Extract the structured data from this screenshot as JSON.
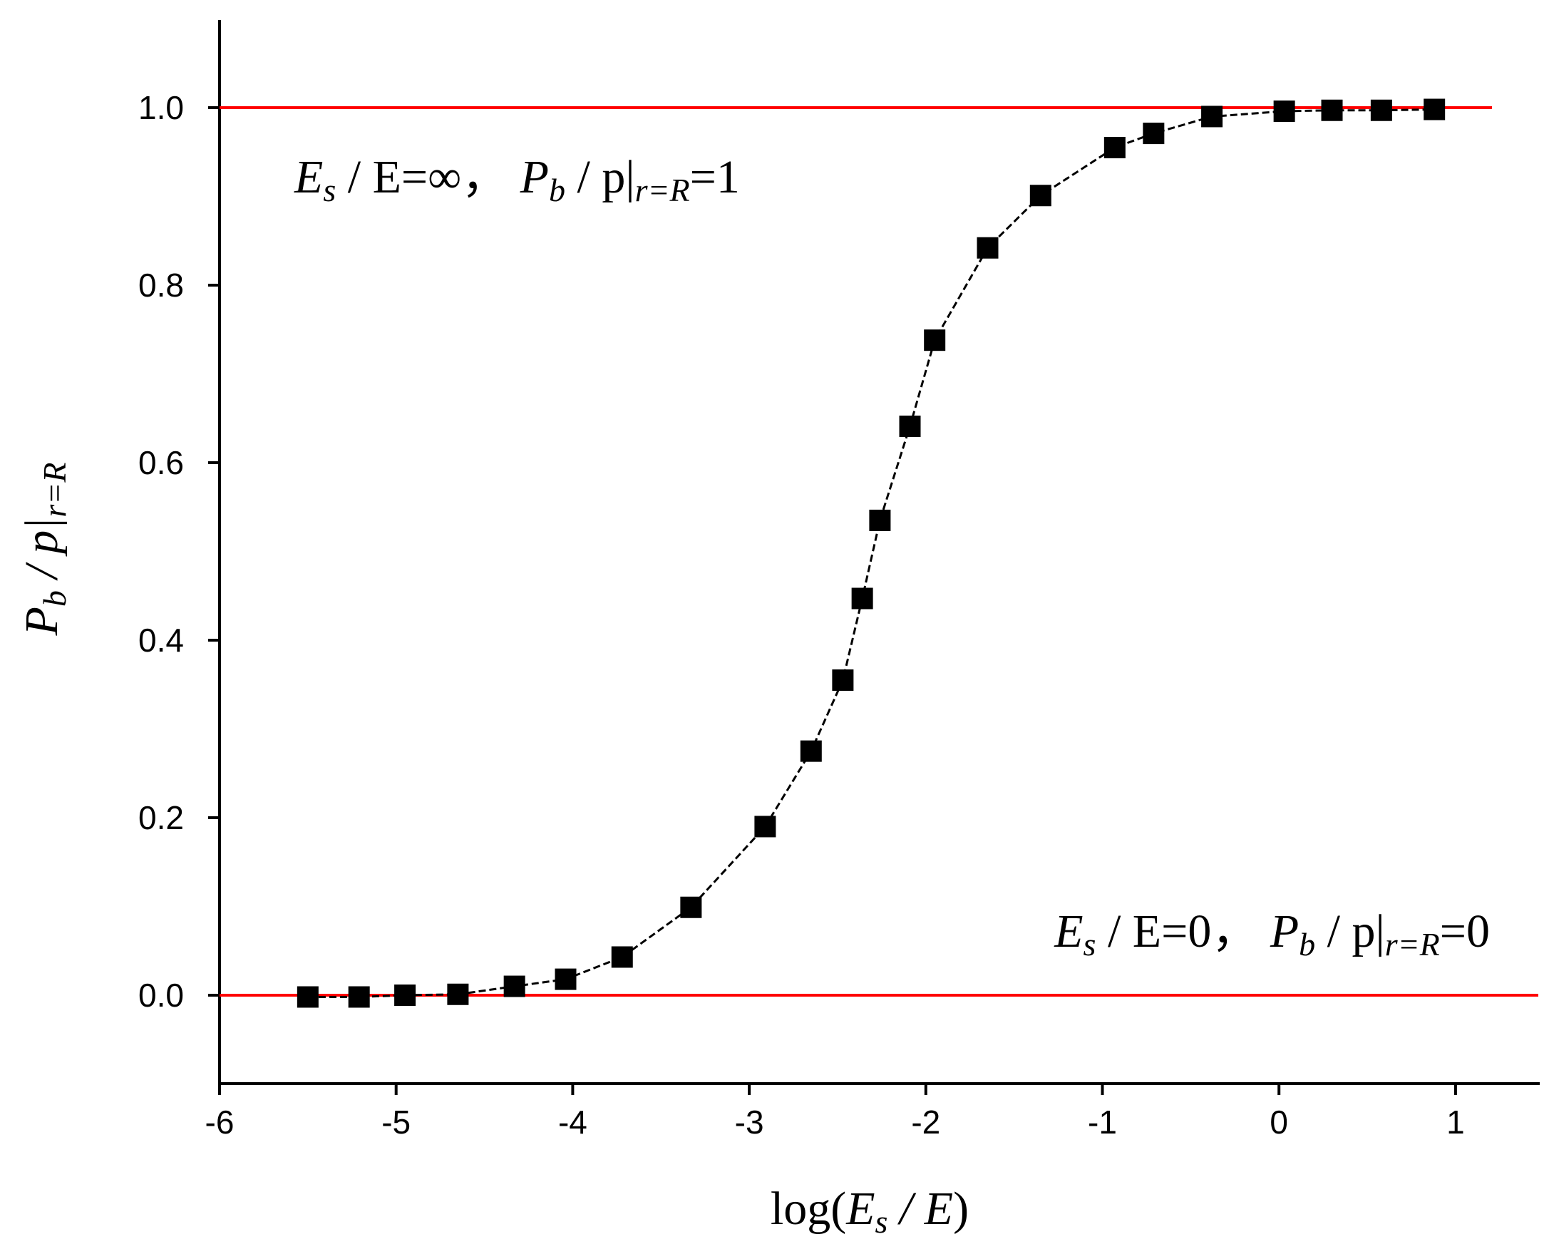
{
  "chart_data": {
    "type": "scatter",
    "xlim": [
      -6,
      1.5
    ],
    "ylim": [
      -0.1,
      1.1
    ],
    "x_ticks": [
      -6,
      -5,
      -4,
      -3,
      -2,
      -1,
      0,
      1
    ],
    "x_tick_labels": [
      "-6",
      "-5",
      "-4",
      "-3",
      "-2",
      "-1",
      "0",
      "1"
    ],
    "y_ticks": [
      0.0,
      0.2,
      0.4,
      0.6,
      0.8,
      1.0
    ],
    "y_tick_labels": [
      "0.0",
      "0.2",
      "0.4",
      "0.6",
      "0.8",
      "1.0"
    ],
    "xlabel": {
      "prefix": "log(",
      "main": "E",
      "sub": "s",
      "rest": " / E",
      "suffix": ")"
    },
    "ylabel": {
      "main": "P",
      "sub": "b",
      "rest": " / p|",
      "sub2": "r=R"
    },
    "grid": false,
    "legend": "none",
    "series": [
      {
        "marker": "square",
        "line": "dashed",
        "color": "#000000",
        "x": [
          -5.5,
          -5.21,
          -4.95,
          -4.65,
          -4.33,
          -4.04,
          -3.72,
          -3.33,
          -2.91,
          -2.65,
          -2.47,
          -2.36,
          -2.26,
          -2.09,
          -1.95,
          -1.65,
          -1.35,
          -0.93,
          -0.71,
          -0.38,
          0.03,
          0.3,
          0.58,
          0.88
        ],
        "y": [
          -0.002,
          -0.002,
          0.0,
          0.001,
          0.01,
          0.018,
          0.043,
          0.099,
          0.19,
          0.275,
          0.355,
          0.447,
          0.535,
          0.641,
          0.738,
          0.842,
          0.901,
          0.955,
          0.971,
          0.99,
          0.996,
          0.997,
          0.997,
          0.998
        ]
      }
    ],
    "reference_lines": [
      {
        "y": 1.0,
        "color": "#ff0000"
      },
      {
        "y": 0.0,
        "color": "#ff0000"
      }
    ],
    "annotations": [
      {
        "main1": "E",
        "sub1": "s",
        "text1": " / E=∞，  ",
        "main2": "P",
        "sub2": "b",
        "text2": " / p|",
        "sub3": "r=R",
        "text3": "=1"
      },
      {
        "main1": "E",
        "sub1": "s",
        "text1": " / E=0，  ",
        "main2": "P",
        "sub2": "b",
        "text2": " / p|",
        "sub3": "r=R",
        "text3": "=0"
      }
    ],
    "colors": {
      "reference_line": "#ff0000",
      "series": "#000000",
      "axis": "#000000"
    }
  }
}
